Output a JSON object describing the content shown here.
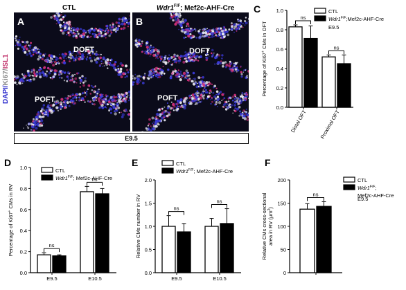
{
  "figure": {
    "panels": {
      "A": {
        "letter": "A",
        "header": "CTL",
        "region1": "DOFT",
        "region2": "POFT"
      },
      "B": {
        "letter": "B",
        "header_italic": "Wdr1",
        "header_sup": "F/F",
        "header_rest": "; Mef2c-AHF-Cre",
        "region1": "DOFT",
        "region2": "POFT"
      },
      "stain_label": {
        "dapi": "DAPI",
        "ki67": "Ki67",
        "isl1": "ISL1",
        "sep": "/"
      },
      "stage": "E9.5"
    },
    "colors": {
      "ctl": "#ffffff",
      "ko": "#000000",
      "dapi": "#3a3ad8",
      "ki67": "#e8e8f0",
      "isl1": "#d0307a"
    }
  },
  "chart_data": [
    {
      "panel": "C",
      "type": "bar",
      "ylabel_pre": "Percentage of Ki67",
      "ylabel_sup": "+",
      "ylabel_post": " CMs in OFT",
      "categories": [
        "Distal OFT",
        "Proximal OFT"
      ],
      "ylim": [
        0,
        1.0
      ],
      "yticks": [
        "0.0",
        "0.2",
        "0.4",
        "0.6",
        "0.8",
        "1.0"
      ],
      "ytick_values": [
        0,
        0.2,
        0.4,
        0.6,
        0.8,
        1.0
      ],
      "series": [
        {
          "name": "CTL",
          "values": [
            0.83,
            0.52
          ],
          "errors": [
            0.02,
            0.02
          ]
        },
        {
          "name_italic": "Wdr1",
          "name_sup": "F/F",
          "name_rest": ";Mef2c-AHF-Cre",
          "values": [
            0.71,
            0.45
          ],
          "errors": [
            0.13,
            0.09
          ]
        }
      ],
      "legend_extra": "E9.5",
      "sig": [
        "ns",
        "ns"
      ]
    },
    {
      "panel": "D",
      "type": "bar",
      "ylabel_pre": "Percentage of Ki67",
      "ylabel_sup": "+",
      "ylabel_post": " CMs in RV",
      "categories": [
        "E9.5",
        "E10.5"
      ],
      "ylim": [
        0,
        1.0
      ],
      "yticks": [
        "0.0",
        "0.2",
        "0.4",
        "0.6",
        "0.8",
        "1.0"
      ],
      "ytick_values": [
        0,
        0.2,
        0.4,
        0.6,
        0.8,
        1.0
      ],
      "series": [
        {
          "name": "CTL",
          "values": [
            0.17,
            0.77
          ],
          "errors": [
            0.02,
            0.05
          ]
        },
        {
          "name_italic": "Wdr1",
          "name_sup": "F/F",
          "name_rest": "; Mef2c-AHF-Cre",
          "values": [
            0.16,
            0.75
          ],
          "errors": [
            0.01,
            0.05
          ]
        }
      ],
      "sig": [
        "ns",
        "ns"
      ]
    },
    {
      "panel": "E",
      "type": "bar",
      "ylabel": "Relative CMs number in RV",
      "categories": [
        "E9.5",
        "E10.5"
      ],
      "ylim": [
        0,
        2.0
      ],
      "yticks": [
        "0.0",
        "0.5",
        "1.0",
        "1.5",
        "2.0"
      ],
      "ytick_values": [
        0,
        0.5,
        1.0,
        1.5,
        2.0
      ],
      "series": [
        {
          "name": "CTL",
          "values": [
            1.0,
            1.0
          ],
          "errors": [
            0.23,
            0.17
          ]
        },
        {
          "name_italic": "Wdr1",
          "name_sup": "F/F",
          "name_rest": "; Mef2c-AHF-Cre",
          "values": [
            0.88,
            1.06
          ],
          "errors": [
            0.18,
            0.32
          ]
        }
      ],
      "sig": [
        "ns",
        "ns"
      ]
    },
    {
      "panel": "F",
      "type": "bar",
      "ylabel_pre": "Relative CMs cross-sectional",
      "ylabel_post2": "area in RV (",
      "ylabel_unit": "μm",
      "ylabel_unit_sup": "2",
      "ylabel_end": ")",
      "categories": [
        ""
      ],
      "ylim": [
        0,
        200
      ],
      "yticks": [
        "0",
        "50",
        "100",
        "150",
        "200"
      ],
      "ytick_values": [
        0,
        50,
        100,
        150,
        200
      ],
      "series": [
        {
          "name": "CTL",
          "values": [
            137
          ],
          "errors": [
            12
          ]
        },
        {
          "name_italic": "Wdr1",
          "name_sup": "F/F",
          "name_rest": ";",
          "name_line2": "Mef2c-AHF-Cre",
          "values": [
            143
          ],
          "errors": [
            10
          ]
        }
      ],
      "legend_extra": "E9.5",
      "sig": [
        "ns"
      ]
    }
  ]
}
